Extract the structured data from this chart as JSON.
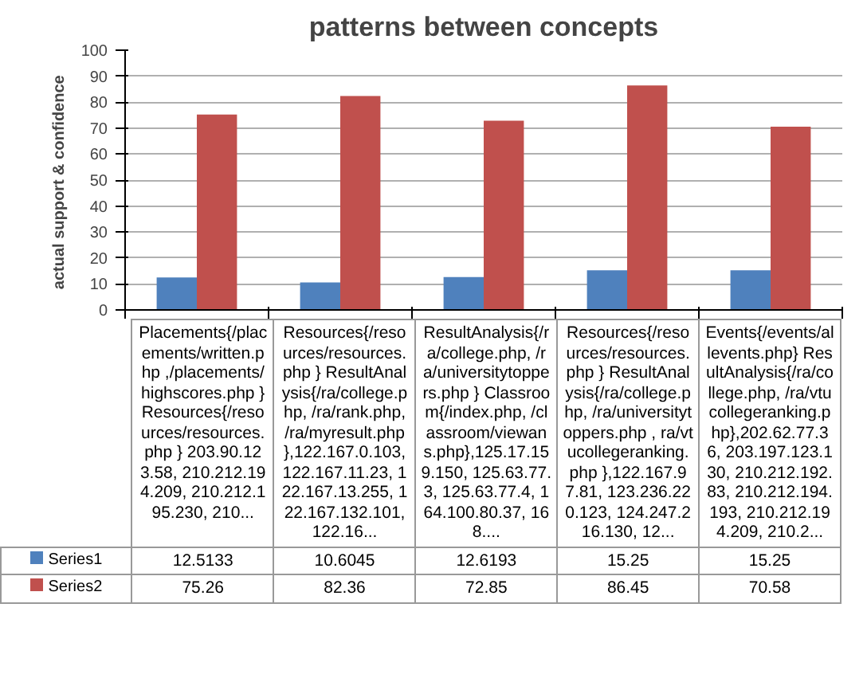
{
  "chart_data": {
    "type": "bar",
    "title": "patterns between concepts",
    "ylabel": "actual  support & confidence",
    "categories": [
      "Placements{/placements/written.php ,/placements/highscores.php }Resources{/resources/resources.php } 203.90.123.58, 210.212.194.209, 210.212.195.230, 210...",
      "Resources{/resources/resources.php } ResultAnalysis{/ra/college.php, /ra/rank.php, /ra/myresult.php },122.167.0.103, 122.167.11.23, 122.167.13.255, 122.167.132.101, 122.16...",
      "ResultAnalysis{/ra/college.php, /ra/universitytoppers.php } Classroom{/index.php, /classroom/viewans.php},125.17.159.150, 125.63.77.3, 125.63.77.4, 164.100.80.37, 168....",
      "Resources{/resources/resources.php } ResultAnalysis{/ra/college.php, /ra/universitytoppers.php , ra/vtucollegeranking.php },122.167.97.81, 123.236.220.123, 124.247.216.130, 12...",
      "Events{/events/allevents.php} ResultAnalysis{/ra/college.php, /ra/vtucollegeranking.php},202.62.77.36, 203.197.123.130, 210.212.192.83, 210.212.194.193, 210.212.194.209, 210.2..."
    ],
    "series": [
      {
        "name": "Series1",
        "color": "#4f81bd",
        "values": [
          12.5133,
          10.6045,
          12.6193,
          15.25,
          15.25
        ]
      },
      {
        "name": "Series2",
        "color": "#c0504d",
        "values": [
          75.26,
          82.36,
          72.85,
          86.45,
          70.58
        ]
      }
    ],
    "ylim": [
      0,
      100
    ],
    "yticks": [
      0,
      10,
      20,
      30,
      40,
      50,
      60,
      70,
      80,
      90,
      100
    ],
    "grid": "y",
    "data_labels": true,
    "legend": "bottom"
  }
}
